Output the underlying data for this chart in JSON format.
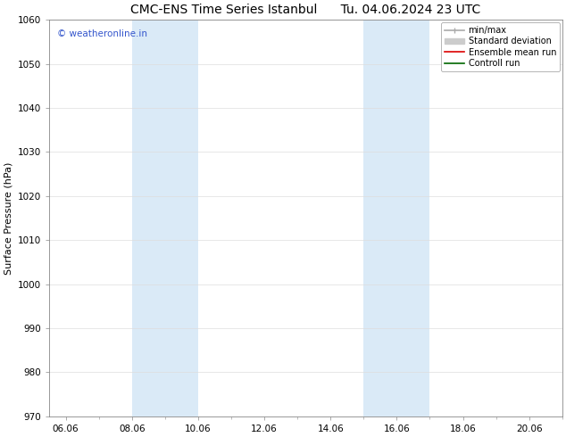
{
  "title_left": "CMC-ENS Time Series Istanbul",
  "title_right": "Tu. 04.06.2024 23 UTC",
  "ylabel": "Surface Pressure (hPa)",
  "ylim": [
    970,
    1060
  ],
  "yticks": [
    970,
    980,
    990,
    1000,
    1010,
    1020,
    1030,
    1040,
    1050,
    1060
  ],
  "xlim_start": 5.5,
  "xlim_end": 21.0,
  "xtick_labels": [
    "06.06",
    "08.06",
    "10.06",
    "12.06",
    "14.06",
    "16.06",
    "18.06",
    "20.06"
  ],
  "xtick_positions": [
    6.0,
    8.0,
    10.0,
    12.0,
    14.0,
    16.0,
    18.0,
    20.0
  ],
  "shaded_bands": [
    {
      "x_start": 8.0,
      "x_end": 10.0
    },
    {
      "x_start": 15.0,
      "x_end": 17.0
    }
  ],
  "band_color": "#daeaf7",
  "watermark_text": "© weatheronline.in",
  "watermark_color": "#3355cc",
  "watermark_fontsize": 7.5,
  "legend_entries": [
    {
      "label": "min/max",
      "color": "#aaaaaa",
      "lw": 1.2,
      "ls": "-",
      "type": "line_capped"
    },
    {
      "label": "Standard deviation",
      "color": "#cccccc",
      "lw": 5,
      "ls": "-",
      "type": "patch"
    },
    {
      "label": "Ensemble mean run",
      "color": "#dd0000",
      "lw": 1.2,
      "ls": "-",
      "type": "line"
    },
    {
      "label": "Controll run",
      "color": "#006600",
      "lw": 1.2,
      "ls": "-",
      "type": "line"
    }
  ],
  "title_fontsize": 10,
  "axis_label_fontsize": 8,
  "tick_fontsize": 7.5,
  "legend_fontsize": 7,
  "background_color": "#ffffff",
  "grid_color": "#dddddd",
  "spine_color": "#888888"
}
